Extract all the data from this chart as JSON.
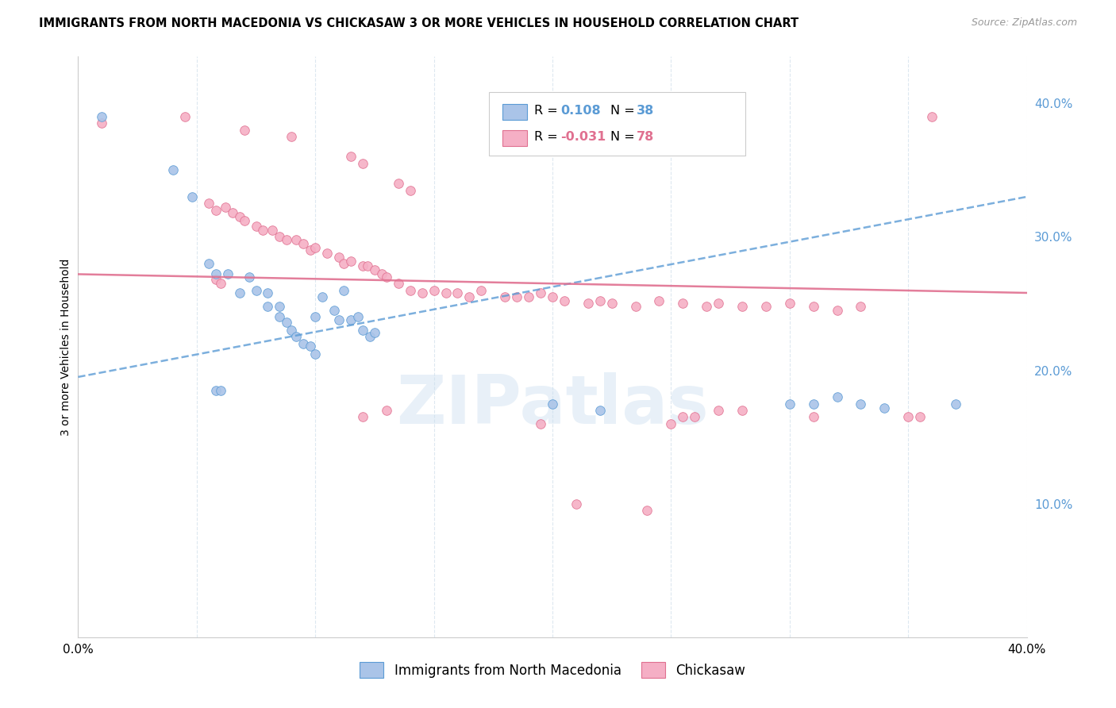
{
  "title": "IMMIGRANTS FROM NORTH MACEDONIA VS CHICKASAW 3 OR MORE VEHICLES IN HOUSEHOLD CORRELATION CHART",
  "source": "Source: ZipAtlas.com",
  "ylabel": "3 or more Vehicles in Household",
  "right_yticks": [
    "40.0%",
    "30.0%",
    "20.0%",
    "10.0%"
  ],
  "right_ytick_vals": [
    0.4,
    0.3,
    0.2,
    0.1
  ],
  "xlim": [
    0.0,
    0.4
  ],
  "ylim": [
    0.0,
    0.435
  ],
  "watermark": "ZIPatlas",
  "series1_color": "#aac4e8",
  "series2_color": "#f5afc5",
  "trendline1_color": "#5b9bd5",
  "trendline2_color": "#e07090",
  "background_color": "#ffffff",
  "grid_color": "#dde8f0",
  "trendline1_x0": 0.0,
  "trendline1_y0": 0.195,
  "trendline1_x1": 0.4,
  "trendline1_y1": 0.33,
  "trendline2_x0": 0.0,
  "trendline2_y0": 0.272,
  "trendline2_x1": 0.4,
  "trendline2_y1": 0.258,
  "series1_points": [
    [
      0.01,
      0.39
    ],
    [
      0.04,
      0.35
    ],
    [
      0.048,
      0.33
    ],
    [
      0.055,
      0.28
    ],
    [
      0.058,
      0.272
    ],
    [
      0.063,
      0.272
    ],
    [
      0.068,
      0.258
    ],
    [
      0.072,
      0.27
    ],
    [
      0.075,
      0.26
    ],
    [
      0.08,
      0.258
    ],
    [
      0.08,
      0.248
    ],
    [
      0.085,
      0.248
    ],
    [
      0.085,
      0.24
    ],
    [
      0.088,
      0.236
    ],
    [
      0.09,
      0.23
    ],
    [
      0.092,
      0.225
    ],
    [
      0.095,
      0.22
    ],
    [
      0.098,
      0.218
    ],
    [
      0.1,
      0.212
    ],
    [
      0.1,
      0.24
    ],
    [
      0.103,
      0.255
    ],
    [
      0.108,
      0.245
    ],
    [
      0.11,
      0.238
    ],
    [
      0.112,
      0.26
    ],
    [
      0.115,
      0.238
    ],
    [
      0.118,
      0.24
    ],
    [
      0.12,
      0.23
    ],
    [
      0.123,
      0.225
    ],
    [
      0.125,
      0.228
    ],
    [
      0.058,
      0.185
    ],
    [
      0.06,
      0.185
    ],
    [
      0.2,
      0.175
    ],
    [
      0.22,
      0.17
    ],
    [
      0.3,
      0.175
    ],
    [
      0.31,
      0.175
    ],
    [
      0.32,
      0.18
    ],
    [
      0.33,
      0.175
    ],
    [
      0.34,
      0.172
    ],
    [
      0.37,
      0.175
    ]
  ],
  "series2_points": [
    [
      0.01,
      0.385
    ],
    [
      0.045,
      0.39
    ],
    [
      0.07,
      0.38
    ],
    [
      0.09,
      0.375
    ],
    [
      0.115,
      0.36
    ],
    [
      0.12,
      0.355
    ],
    [
      0.135,
      0.34
    ],
    [
      0.14,
      0.335
    ],
    [
      0.055,
      0.325
    ],
    [
      0.058,
      0.32
    ],
    [
      0.062,
      0.322
    ],
    [
      0.065,
      0.318
    ],
    [
      0.068,
      0.315
    ],
    [
      0.07,
      0.312
    ],
    [
      0.075,
      0.308
    ],
    [
      0.078,
      0.305
    ],
    [
      0.082,
      0.305
    ],
    [
      0.085,
      0.3
    ],
    [
      0.088,
      0.298
    ],
    [
      0.092,
      0.298
    ],
    [
      0.095,
      0.295
    ],
    [
      0.098,
      0.29
    ],
    [
      0.1,
      0.292
    ],
    [
      0.105,
      0.288
    ],
    [
      0.11,
      0.285
    ],
    [
      0.112,
      0.28
    ],
    [
      0.115,
      0.282
    ],
    [
      0.12,
      0.278
    ],
    [
      0.122,
      0.278
    ],
    [
      0.125,
      0.275
    ],
    [
      0.128,
      0.272
    ],
    [
      0.13,
      0.27
    ],
    [
      0.058,
      0.268
    ],
    [
      0.06,
      0.265
    ],
    [
      0.135,
      0.265
    ],
    [
      0.14,
      0.26
    ],
    [
      0.145,
      0.258
    ],
    [
      0.15,
      0.26
    ],
    [
      0.155,
      0.258
    ],
    [
      0.16,
      0.258
    ],
    [
      0.165,
      0.255
    ],
    [
      0.17,
      0.26
    ],
    [
      0.18,
      0.255
    ],
    [
      0.185,
      0.255
    ],
    [
      0.19,
      0.255
    ],
    [
      0.195,
      0.258
    ],
    [
      0.2,
      0.255
    ],
    [
      0.205,
      0.252
    ],
    [
      0.215,
      0.25
    ],
    [
      0.22,
      0.252
    ],
    [
      0.225,
      0.25
    ],
    [
      0.235,
      0.248
    ],
    [
      0.245,
      0.252
    ],
    [
      0.255,
      0.25
    ],
    [
      0.265,
      0.248
    ],
    [
      0.27,
      0.25
    ],
    [
      0.28,
      0.248
    ],
    [
      0.29,
      0.248
    ],
    [
      0.3,
      0.25
    ],
    [
      0.31,
      0.248
    ],
    [
      0.32,
      0.245
    ],
    [
      0.33,
      0.248
    ],
    [
      0.12,
      0.165
    ],
    [
      0.25,
      0.16
    ],
    [
      0.35,
      0.165
    ],
    [
      0.355,
      0.165
    ],
    [
      0.31,
      0.165
    ],
    [
      0.28,
      0.17
    ],
    [
      0.27,
      0.17
    ],
    [
      0.26,
      0.165
    ],
    [
      0.255,
      0.165
    ],
    [
      0.13,
      0.17
    ],
    [
      0.195,
      0.16
    ],
    [
      0.36,
      0.39
    ],
    [
      0.21,
      0.1
    ],
    [
      0.24,
      0.095
    ]
  ]
}
